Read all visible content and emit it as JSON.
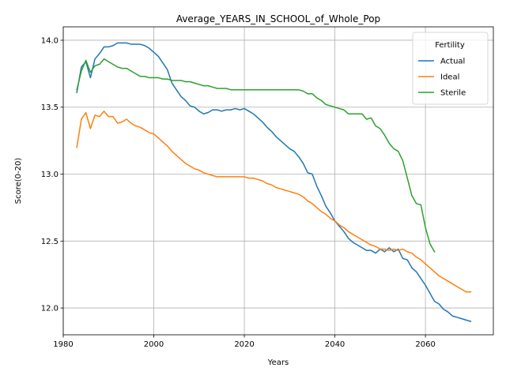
{
  "chart_data": {
    "type": "line",
    "title": "Average_YEARS_IN_SCHOOL_of_Whole_Pop",
    "xlabel": "Years",
    "ylabel": "Score(0-20)",
    "xlim": [
      1980,
      2075
    ],
    "ylim": [
      11.8,
      14.1
    ],
    "xticks": [
      1980,
      2000,
      2020,
      2040,
      2060
    ],
    "yticks": [
      12.0,
      12.5,
      13.0,
      13.5,
      14.0
    ],
    "xtick_labels": [
      "1980",
      "2000",
      "2020",
      "2040",
      "2060"
    ],
    "ytick_labels": [
      "12.0",
      "12.5",
      "13.0",
      "13.5",
      "14.0"
    ],
    "grid": true,
    "legend": {
      "title": "Fertility",
      "placement": "top-right"
    },
    "series": [
      {
        "name": "Actual",
        "color": "#1f77b4",
        "x": [
          1983,
          1984,
          1985,
          1986,
          1987,
          1988,
          1989,
          1990,
          1991,
          1992,
          1993,
          1994,
          1995,
          1996,
          1997,
          1998,
          1999,
          2000,
          2001,
          2002,
          2003,
          2004,
          2005,
          2006,
          2007,
          2008,
          2009,
          2010,
          2011,
          2012,
          2013,
          2014,
          2015,
          2016,
          2017,
          2018,
          2019,
          2020,
          2021,
          2022,
          2023,
          2024,
          2025,
          2026,
          2027,
          2028,
          2029,
          2030,
          2031,
          2032,
          2033,
          2034,
          2035,
          2036,
          2037,
          2038,
          2039,
          2040,
          2041,
          2042,
          2043,
          2044,
          2045,
          2046,
          2047,
          2048,
          2049,
          2050,
          2051,
          2052,
          2053,
          2054,
          2055,
          2056,
          2057,
          2058,
          2059,
          2060,
          2061,
          2062,
          2063,
          2064,
          2065,
          2066,
          2067,
          2068,
          2069,
          2070
        ],
        "y": [
          13.61,
          13.8,
          13.84,
          13.72,
          13.86,
          13.9,
          13.95,
          13.95,
          13.96,
          13.98,
          13.98,
          13.98,
          13.97,
          13.97,
          13.97,
          13.96,
          13.94,
          13.91,
          13.88,
          13.83,
          13.78,
          13.68,
          13.63,
          13.58,
          13.55,
          13.51,
          13.5,
          13.47,
          13.45,
          13.46,
          13.48,
          13.48,
          13.47,
          13.48,
          13.48,
          13.49,
          13.48,
          13.49,
          13.47,
          13.45,
          13.42,
          13.39,
          13.35,
          13.32,
          13.28,
          13.25,
          13.22,
          13.19,
          13.17,
          13.13,
          13.08,
          13.01,
          13.0,
          12.91,
          12.84,
          12.76,
          12.71,
          12.65,
          12.61,
          12.57,
          12.52,
          12.49,
          12.47,
          12.45,
          12.43,
          12.43,
          12.41,
          12.44,
          12.42,
          12.45,
          12.42,
          12.44,
          12.37,
          12.36,
          12.3,
          12.27,
          12.22,
          12.17,
          12.11,
          12.05,
          12.03,
          11.99,
          11.97,
          11.94,
          11.93,
          11.92,
          11.91,
          11.9
        ]
      },
      {
        "name": "Ideal",
        "color": "#ff7f0e",
        "x": [
          1983,
          1984,
          1985,
          1986,
          1987,
          1988,
          1989,
          1990,
          1991,
          1992,
          1993,
          1994,
          1995,
          1996,
          1997,
          1998,
          1999,
          2000,
          2001,
          2002,
          2003,
          2004,
          2005,
          2006,
          2007,
          2008,
          2009,
          2010,
          2011,
          2012,
          2013,
          2014,
          2015,
          2016,
          2017,
          2018,
          2019,
          2020,
          2021,
          2022,
          2023,
          2024,
          2025,
          2026,
          2027,
          2028,
          2029,
          2030,
          2031,
          2032,
          2033,
          2034,
          2035,
          2036,
          2037,
          2038,
          2039,
          2040,
          2041,
          2042,
          2043,
          2044,
          2045,
          2046,
          2047,
          2048,
          2049,
          2050,
          2051,
          2052,
          2053,
          2054,
          2055,
          2056,
          2057,
          2058,
          2059,
          2060,
          2061,
          2062,
          2063,
          2064,
          2065,
          2066,
          2067,
          2068,
          2069,
          2070
        ],
        "y": [
          13.2,
          13.41,
          13.46,
          13.34,
          13.44,
          13.43,
          13.47,
          13.43,
          13.43,
          13.38,
          13.39,
          13.41,
          13.38,
          13.36,
          13.35,
          13.33,
          13.31,
          13.3,
          13.27,
          13.24,
          13.21,
          13.17,
          13.14,
          13.11,
          13.08,
          13.06,
          13.04,
          13.03,
          13.01,
          13.0,
          12.99,
          12.98,
          12.98,
          12.98,
          12.98,
          12.98,
          12.98,
          12.98,
          12.97,
          12.97,
          12.96,
          12.95,
          12.93,
          12.92,
          12.9,
          12.89,
          12.88,
          12.87,
          12.86,
          12.85,
          12.83,
          12.8,
          12.78,
          12.75,
          12.72,
          12.7,
          12.67,
          12.65,
          12.62,
          12.6,
          12.57,
          12.55,
          12.53,
          12.51,
          12.49,
          12.47,
          12.46,
          12.44,
          12.44,
          12.43,
          12.44,
          12.43,
          12.44,
          12.42,
          12.41,
          12.38,
          12.36,
          12.33,
          12.3,
          12.27,
          12.24,
          12.22,
          12.2,
          12.18,
          12.16,
          12.14,
          12.12,
          12.12
        ]
      },
      {
        "name": "Sterile",
        "color": "#2ca02c",
        "x": [
          1983,
          1984,
          1985,
          1986,
          1987,
          1988,
          1989,
          1990,
          1991,
          1992,
          1993,
          1994,
          1995,
          1996,
          1997,
          1998,
          1999,
          2000,
          2001,
          2002,
          2003,
          2004,
          2005,
          2006,
          2007,
          2008,
          2009,
          2010,
          2011,
          2012,
          2013,
          2014,
          2015,
          2016,
          2017,
          2018,
          2019,
          2020,
          2021,
          2022,
          2023,
          2024,
          2025,
          2026,
          2027,
          2028,
          2029,
          2030,
          2031,
          2032,
          2033,
          2034,
          2035,
          2036,
          2037,
          2038,
          2039,
          2040,
          2041,
          2042,
          2043,
          2044,
          2045,
          2046,
          2047,
          2048,
          2049,
          2050,
          2051,
          2052,
          2053,
          2054,
          2055,
          2056,
          2057,
          2058,
          2059,
          2060,
          2061,
          2062
        ],
        "y": [
          13.63,
          13.77,
          13.85,
          13.76,
          13.81,
          13.82,
          13.86,
          13.84,
          13.82,
          13.8,
          13.79,
          13.79,
          13.77,
          13.75,
          13.73,
          13.73,
          13.72,
          13.72,
          13.72,
          13.71,
          13.71,
          13.7,
          13.7,
          13.7,
          13.69,
          13.69,
          13.68,
          13.67,
          13.66,
          13.66,
          13.65,
          13.64,
          13.64,
          13.64,
          13.63,
          13.63,
          13.63,
          13.63,
          13.63,
          13.63,
          13.63,
          13.63,
          13.63,
          13.63,
          13.63,
          13.63,
          13.63,
          13.63,
          13.63,
          13.63,
          13.62,
          13.6,
          13.6,
          13.57,
          13.55,
          13.52,
          13.51,
          13.5,
          13.49,
          13.48,
          13.45,
          13.45,
          13.45,
          13.45,
          13.41,
          13.42,
          13.36,
          13.34,
          13.29,
          13.23,
          13.19,
          13.17,
          13.1,
          12.97,
          12.84,
          12.78,
          12.77,
          12.6,
          12.48,
          12.42
        ]
      }
    ]
  }
}
